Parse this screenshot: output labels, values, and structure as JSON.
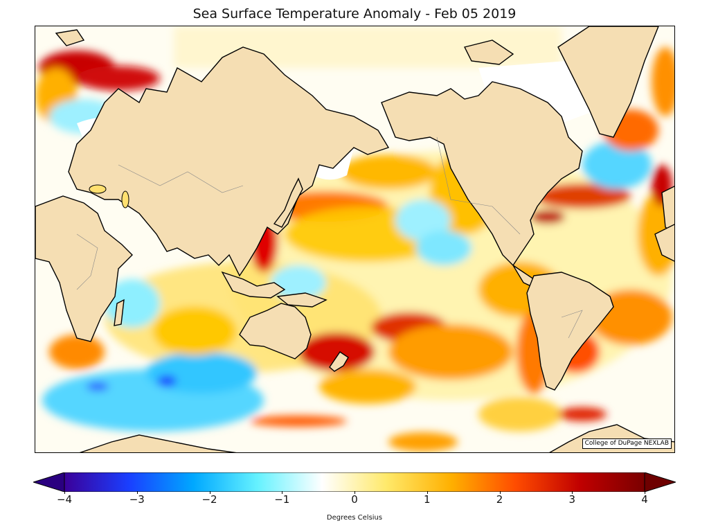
{
  "title": "Sea Surface Temperature Anomaly - Feb 05 2019",
  "credit": "College of DuPage NEXLAB",
  "colorbar": {
    "label": "Degrees Celsius",
    "range": [
      -4,
      4
    ],
    "ticks": [
      "−4",
      "−3",
      "−2",
      "−1",
      "0",
      "1",
      "2",
      "3",
      "4"
    ],
    "stops": [
      "#3b0099",
      "#1a3fff",
      "#00a8ff",
      "#66f2ff",
      "#ffffff",
      "#ffe96a",
      "#ffb000",
      "#ff4c00",
      "#c00000",
      "#7a0000"
    ]
  },
  "colors": {
    "land": "#f5deb3",
    "ice": "#ffffff",
    "warm_weak": "#ffe98a",
    "warm": "#ffb31a",
    "warm_strong": "#ff5a00",
    "hot": "#c80000",
    "cool_weak": "#a8f4ff",
    "cool": "#33c6ff",
    "cold": "#1f4dff",
    "very_cold": "#2a0d99"
  }
}
